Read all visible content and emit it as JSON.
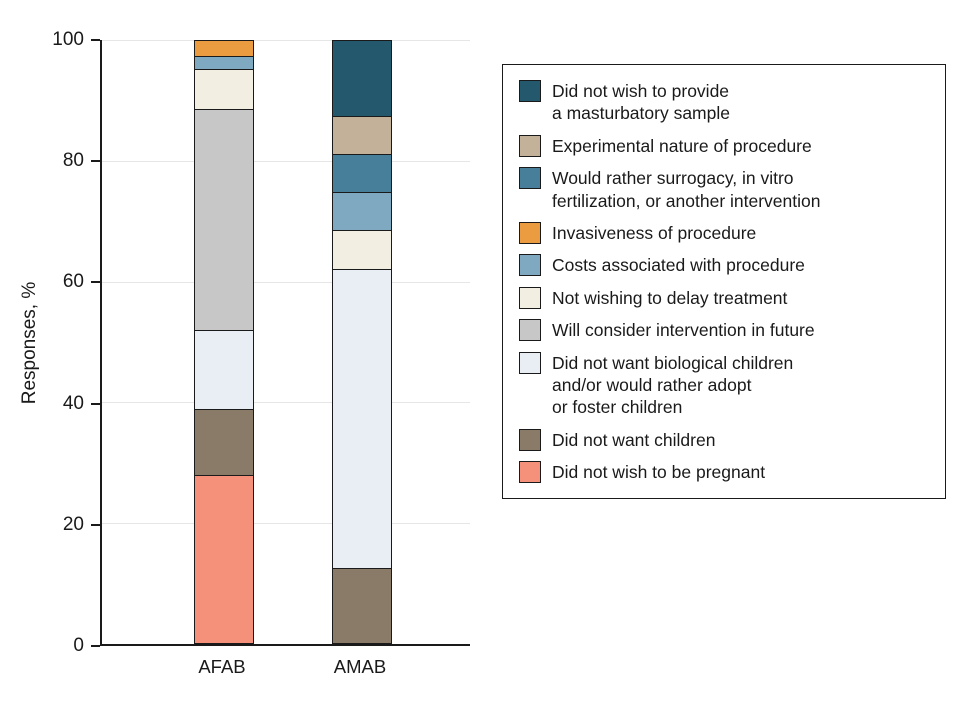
{
  "chart_data": {
    "type": "bar",
    "stacked": true,
    "title": "",
    "ylabel": "Responses, %",
    "xlabel": "",
    "ylim": [
      0,
      100
    ],
    "yticks": [
      0,
      20,
      40,
      60,
      80,
      100
    ],
    "grid": true,
    "legend_position": "right",
    "stack_order": "first series renders at top of bar",
    "categories": [
      "AFAB",
      "AMAB"
    ],
    "series": [
      {
        "label": "Did not wish to provide\na masturbatory sample",
        "color": "#24586d",
        "values": [
          0,
          12.5
        ]
      },
      {
        "label": "Experimental nature of procedure",
        "color": "#c3b299",
        "values": [
          0,
          6.25
        ]
      },
      {
        "label": "Would rather surrogacy, in vitro\nfertilization, or another intervention",
        "color": "#477f9b",
        "values": [
          0,
          6.25
        ]
      },
      {
        "label": "Invasiveness of procedure",
        "color": "#eb9c40",
        "values": [
          2.5,
          0
        ]
      },
      {
        "label": "Costs associated with procedure",
        "color": "#7fa9c0",
        "values": [
          2,
          6.25
        ]
      },
      {
        "label": "Not wishing to delay treatment",
        "color": "#f2efe2",
        "values": [
          6.5,
          6.25
        ]
      },
      {
        "label": "Will consider intervention in future",
        "color": "#c7c7c7",
        "values": [
          37,
          0
        ]
      },
      {
        "label": "Did not want biological children\nand/or would rather adopt\nor foster children",
        "color": "#e8eef4",
        "values": [
          13,
          50
        ]
      },
      {
        "label": "Did not want children",
        "color": "#8a7b68",
        "values": [
          11,
          12.5
        ]
      },
      {
        "label": "Did not wish to be pregnant",
        "color": "#f5907a",
        "values": [
          28,
          0
        ]
      }
    ]
  }
}
